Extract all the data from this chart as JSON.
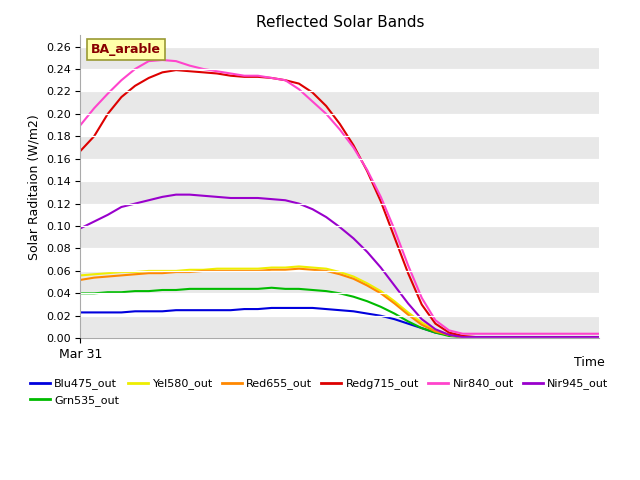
{
  "title": "Reflected Solar Bands",
  "ylabel": "Solar Raditaion (W/m2)",
  "xlabel": "Time",
  "annotation": "BA_arable",
  "x_tick_label": "Mar 31",
  "ylim": [
    0.0,
    0.27
  ],
  "xlim": [
    0,
    38
  ],
  "plot_bg": "#e8e8e8",
  "fig_bg": "#ffffff",
  "series_order": [
    "Blu475_out",
    "Grn535_out",
    "Yel580_out",
    "Red655_out",
    "Redg715_out",
    "Nir840_out",
    "Nir945_out"
  ],
  "series": {
    "Blu475_out": {
      "color": "#0000dd",
      "data_x": [
        0,
        1,
        2,
        3,
        4,
        5,
        6,
        7,
        8,
        9,
        10,
        11,
        12,
        13,
        14,
        15,
        16,
        17,
        18,
        19,
        20,
        21,
        22,
        23,
        24,
        25,
        26,
        27,
        28,
        29,
        30,
        31,
        32,
        33,
        34,
        35,
        36,
        37,
        38
      ],
      "data_y": [
        0.023,
        0.023,
        0.023,
        0.023,
        0.024,
        0.024,
        0.024,
        0.025,
        0.025,
        0.025,
        0.025,
        0.025,
        0.026,
        0.026,
        0.027,
        0.027,
        0.027,
        0.027,
        0.026,
        0.025,
        0.024,
        0.022,
        0.02,
        0.017,
        0.013,
        0.009,
        0.005,
        0.003,
        0.001,
        0.001,
        0.001,
        0.001,
        0.001,
        0.001,
        0.001,
        0.001,
        0.001,
        0.001,
        0.001
      ]
    },
    "Grn535_out": {
      "color": "#00bb00",
      "data_x": [
        0,
        1,
        2,
        3,
        4,
        5,
        6,
        7,
        8,
        9,
        10,
        11,
        12,
        13,
        14,
        15,
        16,
        17,
        18,
        19,
        20,
        21,
        22,
        23,
        24,
        25,
        26,
        27,
        28,
        29,
        30,
        31,
        32,
        33,
        34,
        35,
        36,
        37,
        38
      ],
      "data_y": [
        0.04,
        0.04,
        0.041,
        0.041,
        0.042,
        0.042,
        0.043,
        0.043,
        0.044,
        0.044,
        0.044,
        0.044,
        0.044,
        0.044,
        0.045,
        0.044,
        0.044,
        0.043,
        0.042,
        0.04,
        0.037,
        0.033,
        0.028,
        0.022,
        0.015,
        0.009,
        0.005,
        0.002,
        0.001,
        0.001,
        0.001,
        0.001,
        0.001,
        0.001,
        0.001,
        0.001,
        0.001,
        0.001,
        0.001
      ]
    },
    "Yel580_out": {
      "color": "#eeee00",
      "data_x": [
        0,
        1,
        2,
        3,
        4,
        5,
        6,
        7,
        8,
        9,
        10,
        11,
        12,
        13,
        14,
        15,
        16,
        17,
        18,
        19,
        20,
        21,
        22,
        23,
        24,
        25,
        26,
        27,
        28,
        29,
        30,
        31,
        32,
        33,
        34,
        35,
        36,
        37,
        38
      ],
      "data_y": [
        0.056,
        0.057,
        0.058,
        0.059,
        0.059,
        0.06,
        0.06,
        0.06,
        0.061,
        0.061,
        0.062,
        0.062,
        0.062,
        0.062,
        0.063,
        0.063,
        0.064,
        0.063,
        0.062,
        0.059,
        0.055,
        0.049,
        0.042,
        0.033,
        0.023,
        0.014,
        0.007,
        0.003,
        0.001,
        0.001,
        0.001,
        0.001,
        0.001,
        0.001,
        0.001,
        0.001,
        0.001,
        0.001,
        0.001
      ]
    },
    "Red655_out": {
      "color": "#ff8800",
      "data_x": [
        0,
        1,
        2,
        3,
        4,
        5,
        6,
        7,
        8,
        9,
        10,
        11,
        12,
        13,
        14,
        15,
        16,
        17,
        18,
        19,
        20,
        21,
        22,
        23,
        24,
        25,
        26,
        27,
        28,
        29,
        30,
        31,
        32,
        33,
        34,
        35,
        36,
        37,
        38
      ],
      "data_y": [
        0.052,
        0.054,
        0.055,
        0.056,
        0.057,
        0.058,
        0.058,
        0.059,
        0.059,
        0.06,
        0.06,
        0.06,
        0.06,
        0.06,
        0.061,
        0.061,
        0.062,
        0.061,
        0.06,
        0.057,
        0.053,
        0.047,
        0.04,
        0.031,
        0.021,
        0.012,
        0.006,
        0.003,
        0.001,
        0.001,
        0.001,
        0.001,
        0.001,
        0.001,
        0.001,
        0.001,
        0.001,
        0.001,
        0.001
      ]
    },
    "Redg715_out": {
      "color": "#dd0000",
      "data_x": [
        0,
        1,
        2,
        3,
        4,
        5,
        6,
        7,
        8,
        9,
        10,
        11,
        12,
        13,
        14,
        15,
        16,
        17,
        18,
        19,
        20,
        21,
        22,
        23,
        24,
        25,
        26,
        27,
        28,
        29,
        30,
        31,
        32,
        33,
        34,
        35,
        36,
        37,
        38
      ],
      "data_y": [
        0.167,
        0.18,
        0.2,
        0.215,
        0.225,
        0.232,
        0.237,
        0.239,
        0.238,
        0.237,
        0.236,
        0.234,
        0.233,
        0.233,
        0.232,
        0.23,
        0.227,
        0.219,
        0.207,
        0.191,
        0.172,
        0.149,
        0.122,
        0.09,
        0.058,
        0.03,
        0.013,
        0.005,
        0.002,
        0.001,
        0.001,
        0.001,
        0.001,
        0.001,
        0.001,
        0.001,
        0.001,
        0.001,
        0.001
      ]
    },
    "Nir840_out": {
      "color": "#ff44cc",
      "data_x": [
        0,
        1,
        2,
        3,
        4,
        5,
        6,
        7,
        8,
        9,
        10,
        11,
        12,
        13,
        14,
        15,
        16,
        17,
        18,
        19,
        20,
        21,
        22,
        23,
        24,
        25,
        26,
        27,
        28,
        29,
        30,
        31,
        32,
        33,
        34,
        35,
        36,
        37,
        38
      ],
      "data_y": [
        0.19,
        0.205,
        0.218,
        0.23,
        0.24,
        0.247,
        0.248,
        0.247,
        0.243,
        0.24,
        0.238,
        0.236,
        0.234,
        0.234,
        0.232,
        0.23,
        0.222,
        0.211,
        0.2,
        0.186,
        0.17,
        0.15,
        0.126,
        0.097,
        0.065,
        0.036,
        0.016,
        0.007,
        0.004,
        0.004,
        0.004,
        0.004,
        0.004,
        0.004,
        0.004,
        0.004,
        0.004,
        0.004,
        0.004
      ]
    },
    "Nir945_out": {
      "color": "#9900cc",
      "data_x": [
        0,
        1,
        2,
        3,
        4,
        5,
        6,
        7,
        8,
        9,
        10,
        11,
        12,
        13,
        14,
        15,
        16,
        17,
        18,
        19,
        20,
        21,
        22,
        23,
        24,
        25,
        26,
        27,
        28,
        29,
        30,
        31,
        32,
        33,
        34,
        35,
        36,
        37,
        38
      ],
      "data_y": [
        0.098,
        0.104,
        0.11,
        0.117,
        0.12,
        0.123,
        0.126,
        0.128,
        0.128,
        0.127,
        0.126,
        0.125,
        0.125,
        0.125,
        0.124,
        0.123,
        0.12,
        0.115,
        0.108,
        0.099,
        0.089,
        0.077,
        0.063,
        0.047,
        0.031,
        0.017,
        0.008,
        0.003,
        0.001,
        0.001,
        0.001,
        0.001,
        0.001,
        0.001,
        0.001,
        0.001,
        0.001,
        0.001,
        0.001
      ]
    }
  },
  "yticks": [
    0.0,
    0.02,
    0.04,
    0.06,
    0.08,
    0.1,
    0.12,
    0.14,
    0.16,
    0.18,
    0.2,
    0.22,
    0.24,
    0.26
  ],
  "legend_order": [
    "Blu475_out",
    "Grn535_out",
    "Yel580_out",
    "Red655_out",
    "Redg715_out",
    "Nir840_out",
    "Nir945_out"
  ]
}
